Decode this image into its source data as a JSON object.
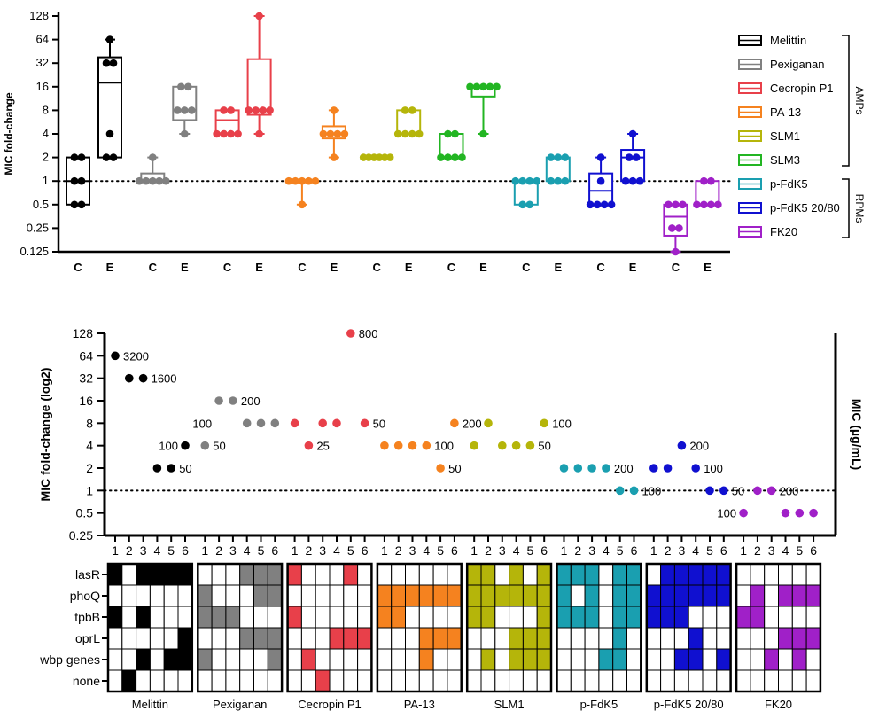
{
  "chart_data": [
    {
      "type": "box",
      "ylabel": "MIC fold-change",
      "yscale": "log2",
      "ylim": [
        0.125,
        128
      ],
      "y_ticks": [
        "128",
        "64",
        "32",
        "16",
        "8",
        "4",
        "2",
        "1",
        "0.5",
        "0.25",
        "0.125"
      ],
      "reference_line": 1,
      "group_labels": [
        "C",
        "E"
      ],
      "legend_group_labels": {
        "AMPs": "AMPs",
        "RPMs": "RPMs"
      },
      "series": [
        {
          "name": "Melittin",
          "color": "#000000",
          "group": "AMPs",
          "C": {
            "min": 0.5,
            "q1": 0.5,
            "median": 1,
            "q3": 2,
            "max": 2,
            "points": [
              2,
              2,
              1,
              1,
              0.5,
              0.5
            ]
          },
          "E": {
            "min": 2,
            "q1": 2,
            "median": 18,
            "q3": 38,
            "max": 64,
            "points": [
              64,
              32,
              32,
              4,
              2,
              2
            ]
          }
        },
        {
          "name": "Pexiganan",
          "color": "#808080",
          "group": "AMPs",
          "C": {
            "min": 1,
            "q1": 1,
            "median": 1,
            "q3": 1.25,
            "max": 2,
            "points": [
              2,
              1,
              1,
              1,
              1,
              1
            ]
          },
          "E": {
            "min": 4,
            "q1": 6,
            "median": 8,
            "q3": 16,
            "max": 16,
            "points": [
              16,
              16,
              8,
              8,
              8,
              4
            ]
          }
        },
        {
          "name": "Cecropin P1",
          "color": "#e8404a",
          "group": "AMPs",
          "C": {
            "min": 4,
            "q1": 4,
            "median": 6,
            "q3": 8,
            "max": 8,
            "points": [
              8,
              8,
              4,
              4,
              4,
              4
            ]
          },
          "E": {
            "min": 4,
            "q1": 7,
            "median": 8,
            "q3": 36,
            "max": 128,
            "points": [
              128,
              8,
              8,
              8,
              8,
              4
            ]
          }
        },
        {
          "name": "PA-13",
          "color": "#f5821f",
          "group": "AMPs",
          "C": {
            "min": 0.5,
            "q1": 1,
            "median": 1,
            "q3": 1,
            "max": 1,
            "points": [
              1,
              1,
              1,
              1,
              1,
              0.5
            ]
          },
          "E": {
            "min": 2,
            "q1": 3.5,
            "median": 4,
            "q3": 5,
            "max": 8,
            "points": [
              8,
              4,
              4,
              4,
              4,
              2
            ]
          }
        },
        {
          "name": "SLM1",
          "color": "#b5b50a",
          "group": "AMPs",
          "C": {
            "min": 2,
            "q1": 2,
            "median": 2,
            "q3": 2,
            "max": 2,
            "points": [
              2,
              2,
              2,
              2,
              2,
              2
            ]
          },
          "E": {
            "min": 4,
            "q1": 4,
            "median": 4,
            "q3": 8,
            "max": 8,
            "points": [
              8,
              8,
              4,
              4,
              4,
              4
            ]
          }
        },
        {
          "name": "SLM3",
          "color": "#22b522",
          "group": "AMPs",
          "C": {
            "min": 2,
            "q1": 2,
            "median": 2,
            "q3": 4,
            "max": 4,
            "points": [
              4,
              4,
              2,
              2,
              2,
              2
            ]
          },
          "E": {
            "min": 4,
            "q1": 12,
            "median": 16,
            "q3": 16,
            "max": 16,
            "points": [
              16,
              16,
              16,
              16,
              16,
              4
            ]
          }
        },
        {
          "name": "p-FdK5",
          "color": "#1a9fb0",
          "group": "RPMs",
          "C": {
            "min": 0.5,
            "q1": 0.5,
            "median": 1,
            "q3": 1,
            "max": 1,
            "points": [
              1,
              1,
              1,
              1,
              0.5,
              0.5
            ]
          },
          "E": {
            "min": 1,
            "q1": 1,
            "median": 1,
            "q3": 2,
            "max": 2,
            "points": [
              2,
              2,
              2,
              1,
              1,
              1
            ]
          }
        },
        {
          "name": "p-FdK5 20/80",
          "color": "#1010d0",
          "group": "RPMs",
          "C": {
            "min": 0.5,
            "q1": 0.5,
            "median": 0.75,
            "q3": 1.25,
            "max": 2,
            "points": [
              2,
              1,
              0.5,
              0.5,
              0.5,
              0.5
            ]
          },
          "E": {
            "min": 1,
            "q1": 1,
            "median": 2,
            "q3": 2.5,
            "max": 4,
            "points": [
              4,
              2,
              2,
              1,
              1,
              1
            ]
          }
        },
        {
          "name": "FK20",
          "color": "#a020c8",
          "group": "RPMs",
          "C": {
            "min": 0.125,
            "q1": 0.2,
            "median": 0.35,
            "q3": 0.5,
            "max": 0.5,
            "points": [
              0.5,
              0.5,
              0.5,
              0.25,
              0.25,
              0.125
            ]
          },
          "E": {
            "min": 0.5,
            "q1": 0.5,
            "median": 0.5,
            "q3": 1,
            "max": 1,
            "points": [
              1,
              1,
              0.5,
              0.5,
              0.5,
              0.5
            ]
          }
        }
      ]
    },
    {
      "type": "scatter",
      "ylabel": "MIC fold-change (log2)",
      "y2label": "MIC (µg/mL)",
      "yscale": "log2",
      "ylim": [
        0.25,
        128
      ],
      "y_ticks": [
        "128",
        "64",
        "32",
        "16",
        "8",
        "4",
        "2",
        "1",
        "0.5",
        "0.25"
      ],
      "x_ticks": [
        "1",
        "2",
        "3",
        "4",
        "5",
        "6"
      ],
      "reference_line": 1,
      "series": [
        {
          "name": "Melittin",
          "color": "#000000",
          "values": [
            64,
            32,
            32,
            2,
            2,
            4
          ],
          "annotations": [
            {
              "text": "3200",
              "isolate": 1,
              "y": 64,
              "side": "right"
            },
            {
              "text": "1600",
              "isolate": 3,
              "y": 32,
              "side": "right"
            },
            {
              "text": "50",
              "isolate": 5,
              "y": 2,
              "side": "right"
            },
            {
              "text": "100",
              "isolate": 6,
              "y": 4,
              "side": "left"
            }
          ]
        },
        {
          "name": "Pexiganan",
          "color": "#808080",
          "values": [
            4,
            16,
            16,
            8,
            8,
            8
          ],
          "annotations": [
            {
              "text": "50",
              "isolate": 1,
              "y": 4,
              "side": "right"
            },
            {
              "text": "200",
              "isolate": 3,
              "y": 16,
              "side": "right"
            },
            {
              "text": "100",
              "isolate": 2,
              "y": 8,
              "side": "left"
            }
          ]
        },
        {
          "name": "Cecropin P1",
          "color": "#e8404a",
          "values": [
            8,
            4,
            8,
            8,
            128,
            8
          ],
          "annotations": [
            {
              "text": "25",
              "isolate": 2,
              "y": 4,
              "side": "right"
            },
            {
              "text": "800",
              "isolate": 5,
              "y": 128,
              "side": "right"
            },
            {
              "text": "50",
              "isolate": 6,
              "y": 8,
              "side": "right"
            }
          ]
        },
        {
          "name": "PA-13",
          "color": "#f5821f",
          "values": [
            4,
            4,
            4,
            4,
            2,
            8
          ],
          "annotations": [
            {
              "text": "100",
              "isolate": 4,
              "y": 4,
              "side": "right"
            },
            {
              "text": "50",
              "isolate": 5,
              "y": 2,
              "side": "right"
            },
            {
              "text": "200",
              "isolate": 6,
              "y": 8,
              "side": "right"
            }
          ]
        },
        {
          "name": "SLM1",
          "color": "#b5b50a",
          "values": [
            4,
            8,
            4,
            4,
            4,
            8
          ],
          "annotations": [
            {
              "text": "50",
              "isolate": 5,
              "y": 4,
              "side": "right"
            },
            {
              "text": "100",
              "isolate": 6,
              "y": 8,
              "side": "right"
            }
          ]
        },
        {
          "name": "p-FdK5",
          "color": "#1a9fb0",
          "values": [
            2,
            2,
            2,
            2,
            1,
            1
          ],
          "annotations": [
            {
              "text": "200",
              "isolate": 4,
              "y": 2,
              "side": "right"
            },
            {
              "text": "100",
              "isolate": 6,
              "y": 1,
              "side": "right"
            }
          ]
        },
        {
          "name": "p-FdK5 20/80",
          "color": "#1010d0",
          "values": [
            2,
            2,
            4,
            2,
            1,
            1
          ],
          "annotations": [
            {
              "text": "200",
              "isolate": 3,
              "y": 4,
              "side": "right"
            },
            {
              "text": "100",
              "isolate": 4,
              "y": 2,
              "side": "right"
            },
            {
              "text": "50",
              "isolate": 6,
              "y": 1,
              "side": "right"
            }
          ]
        },
        {
          "name": "FK20",
          "color": "#a020c8",
          "values": [
            0.5,
            1,
            1,
            0.5,
            0.5,
            0.5
          ],
          "annotations": [
            {
              "text": "100",
              "isolate": 1,
              "y": 0.5,
              "side": "left"
            },
            {
              "text": "200",
              "isolate": 3,
              "y": 1,
              "side": "right"
            }
          ]
        }
      ]
    },
    {
      "type": "heatmap",
      "rows": [
        "lasR",
        "phoQ",
        "tpbB",
        "oprL",
        "wbp genes",
        "none"
      ],
      "columns": [
        "1",
        "2",
        "3",
        "4",
        "5",
        "6"
      ],
      "panels": [
        {
          "name": "Melittin",
          "color": "#000000",
          "cells": [
            [
              1,
              0,
              1,
              1,
              1,
              1
            ],
            [
              0,
              0,
              0,
              0,
              0,
              0
            ],
            [
              1,
              0,
              1,
              0,
              0,
              0
            ],
            [
              0,
              0,
              0,
              0,
              0,
              1
            ],
            [
              0,
              0,
              1,
              0,
              1,
              1
            ],
            [
              0,
              1,
              0,
              0,
              0,
              0
            ]
          ]
        },
        {
          "name": "Pexiganan",
          "color": "#808080",
          "cells": [
            [
              0,
              0,
              0,
              1,
              1,
              1
            ],
            [
              1,
              0,
              0,
              0,
              1,
              1
            ],
            [
              1,
              1,
              1,
              0,
              0,
              0
            ],
            [
              0,
              0,
              0,
              1,
              1,
              1
            ],
            [
              1,
              0,
              0,
              0,
              0,
              1
            ],
            [
              0,
              0,
              0,
              0,
              0,
              0
            ]
          ]
        },
        {
          "name": "Cecropin P1",
          "color": "#e8404a",
          "cells": [
            [
              1,
              0,
              0,
              0,
              1,
              0
            ],
            [
              0,
              0,
              0,
              0,
              0,
              0
            ],
            [
              1,
              0,
              0,
              0,
              0,
              0
            ],
            [
              0,
              0,
              0,
              1,
              1,
              1
            ],
            [
              0,
              1,
              0,
              0,
              0,
              0
            ],
            [
              0,
              0,
              1,
              0,
              0,
              0
            ]
          ]
        },
        {
          "name": "PA-13",
          "color": "#f5821f",
          "cells": [
            [
              0,
              0,
              0,
              0,
              0,
              0
            ],
            [
              1,
              1,
              1,
              1,
              1,
              1
            ],
            [
              1,
              1,
              0,
              0,
              0,
              0
            ],
            [
              0,
              0,
              0,
              1,
              1,
              1
            ],
            [
              0,
              0,
              0,
              1,
              0,
              0
            ],
            [
              0,
              0,
              0,
              0,
              0,
              0
            ]
          ]
        },
        {
          "name": "SLM1",
          "color": "#b5b50a",
          "cells": [
            [
              1,
              1,
              0,
              1,
              0,
              1
            ],
            [
              1,
              1,
              1,
              1,
              1,
              1
            ],
            [
              1,
              1,
              0,
              0,
              0,
              1
            ],
            [
              0,
              0,
              0,
              1,
              1,
              1
            ],
            [
              0,
              1,
              0,
              1,
              1,
              1
            ],
            [
              0,
              0,
              0,
              0,
              0,
              0
            ]
          ]
        },
        {
          "name": "p-FdK5",
          "color": "#1a9fb0",
          "cells": [
            [
              1,
              1,
              1,
              0,
              1,
              1
            ],
            [
              1,
              0,
              1,
              0,
              1,
              1
            ],
            [
              1,
              1,
              1,
              0,
              1,
              1
            ],
            [
              0,
              0,
              0,
              0,
              1,
              0
            ],
            [
              0,
              0,
              0,
              1,
              1,
              0
            ],
            [
              0,
              0,
              0,
              0,
              0,
              0
            ]
          ]
        },
        {
          "name": "p-FdK5 20/80",
          "color": "#1010d0",
          "cells": [
            [
              0,
              1,
              1,
              1,
              1,
              1
            ],
            [
              1,
              1,
              1,
              1,
              1,
              1
            ],
            [
              1,
              1,
              1,
              0,
              0,
              0
            ],
            [
              0,
              0,
              0,
              1,
              0,
              0
            ],
            [
              0,
              0,
              1,
              1,
              0,
              1
            ],
            [
              0,
              0,
              0,
              0,
              0,
              0
            ]
          ]
        },
        {
          "name": "FK20",
          "color": "#a020c8",
          "cells": [
            [
              0,
              0,
              0,
              0,
              0,
              0
            ],
            [
              0,
              1,
              0,
              1,
              1,
              1
            ],
            [
              1,
              1,
              0,
              0,
              0,
              0
            ],
            [
              0,
              0,
              0,
              1,
              1,
              1
            ],
            [
              0,
              0,
              1,
              0,
              1,
              0
            ],
            [
              0,
              0,
              0,
              0,
              0,
              0
            ]
          ]
        }
      ]
    }
  ]
}
